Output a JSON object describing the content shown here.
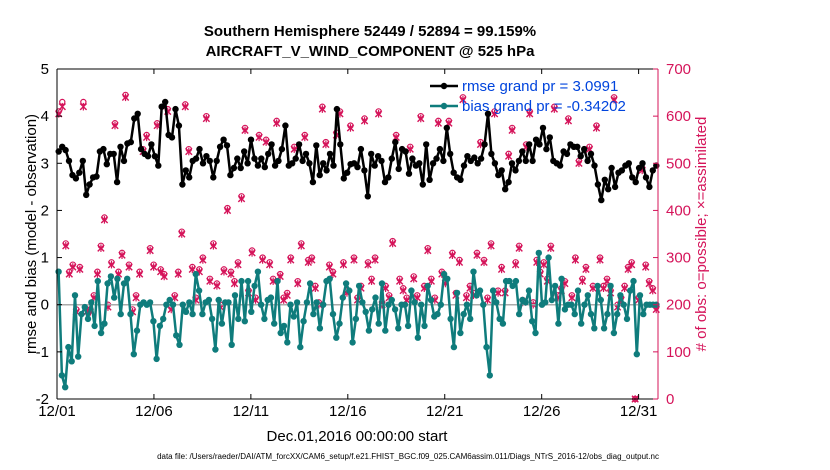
{
  "chart_data": {
    "type": "line",
    "title_line1": "Southern Hemisphere 52449 / 52894 = 99.159%",
    "title_line2": "AIRCRAFT_V_WIND_COMPONENT @ 525 hPa",
    "xlabel": "Dec.01,2016 00:00:00 start",
    "ylabel_left": "rmse and bias (model - observation)",
    "ylabel_right": "# of obs: o=possible; ×=assimilated",
    "footnote": "data file: /Users/raeder/DAI/ATM_forcXX/CAM6_setup/f.e21.FHIST_BGC.f09_025.CAM6assim.011/Diags_NTrS_2016-12/obs_diag_output.nc",
    "x_ticks": [
      1,
      6,
      11,
      16,
      21,
      26,
      31
    ],
    "x_tick_labels": [
      "12/01",
      "12/06",
      "12/11",
      "12/16",
      "12/21",
      "12/26",
      "12/31"
    ],
    "xlim": [
      1,
      32
    ],
    "ylim_left": [
      -2,
      5
    ],
    "y_ticks_left": [
      -2,
      -1,
      0,
      1,
      2,
      3,
      4,
      5
    ],
    "ylim_right": [
      0,
      700
    ],
    "y_ticks_right": [
      0,
      100,
      200,
      300,
      400,
      500,
      600,
      700
    ],
    "legend": [
      {
        "name": "rmse grand pr = 3.0991",
        "color": "#000000"
      },
      {
        "name": "bias grand pr = -0.34202",
        "color": "#0f7c7c"
      }
    ],
    "colors": {
      "rmse": "#000000",
      "bias": "#0f7c7c",
      "counts": "#d5145a",
      "legend_text": "#0044dd",
      "zero": "#aaaaaa"
    },
    "series": {
      "rmse": [
        3.25,
        3.35,
        3.28,
        3.05,
        2.75,
        2.68,
        2.8,
        3.05,
        2.33,
        2.55,
        2.7,
        2.72,
        3.25,
        3.3,
        2.98,
        3.2,
        3.2,
        2.6,
        3.35,
        3.05,
        3.42,
        3.45,
        3.95,
        4.05,
        3.3,
        3.2,
        3.15,
        3.4,
        3.15,
        2.95,
        4.2,
        4.3,
        3.6,
        3.55,
        4.15,
        3.8,
        2.55,
        2.85,
        2.7,
        3.05,
        3.1,
        3.3,
        3.0,
        3.15,
        3.05,
        2.7,
        3.05,
        3.35,
        3.5,
        3.38,
        2.75,
        2.9,
        3.1,
        2.9,
        3.25,
        3.0,
        3.5,
        3.1,
        2.95,
        3.1,
        2.92,
        3.2,
        3.4,
        2.95,
        3.05,
        3.3,
        3.8,
        2.95,
        3.0,
        3.1,
        3.4,
        3.05,
        3.2,
        3.0,
        2.6,
        3.38,
        2.75,
        3.0,
        2.85,
        3.2,
        2.95,
        4.15,
        3.4,
        2.68,
        2.8,
        2.98,
        3.0,
        2.92,
        3.3,
        2.85,
        2.3,
        3.2,
        2.95,
        3.15,
        3.05,
        2.6,
        2.7,
        3.1,
        3.45,
        2.88,
        3.3,
        3.25,
        2.78,
        3.1,
        2.95,
        3.0,
        2.55,
        3.4,
        2.65,
        3.0,
        3.1,
        3.3,
        3.05,
        3.75,
        3.2,
        2.8,
        2.7,
        2.65,
        2.95,
        3.15,
        3.05,
        3.12,
        3.0,
        3.1,
        3.4,
        4.05,
        3.2,
        3.0,
        2.75,
        2.85,
        2.45,
        2.6,
        3.0,
        2.85,
        3.05,
        3.25,
        3.05,
        3.4,
        3.05,
        3.5,
        3.4,
        3.75,
        3.3,
        3.55,
        3.05,
        3.0,
        2.95,
        3.25,
        3.2,
        3.4,
        3.35,
        3.35,
        3.15,
        3.3,
        3.05,
        3.2,
        2.95,
        2.55,
        2.22,
        2.65,
        2.45,
        2.9,
        2.5,
        2.8,
        2.85,
        2.95,
        3.0,
        2.7,
        2.6,
        2.9,
        3.0,
        2.7,
        2.5,
        2.85,
        2.95
      ],
      "bias": [
        0.7,
        -1.5,
        -1.75,
        -0.9,
        -1.2,
        0.2,
        -1.1,
        -0.2,
        -0.05,
        -0.3,
        0.05,
        -0.45,
        0.5,
        -0.6,
        -0.4,
        0.45,
        0.6,
        0.15,
        0.55,
        -0.2,
        0.45,
        0.55,
        -0.2,
        -1.05,
        -0.55,
        0.0,
        0.05,
        0.0,
        0.05,
        -0.35,
        -1.15,
        -0.45,
        -0.3,
        0.0,
        0.1,
        0.0,
        -0.65,
        -0.85,
        0.0,
        -0.15,
        0.05,
        -0.2,
        0.65,
        0.3,
        -0.2,
        0.05,
        0.1,
        -0.3,
        -0.95,
        0.1,
        -0.4,
        0.05,
        0.05,
        -0.85,
        0.2,
        -0.3,
        0.5,
        -0.35,
        0.5,
        -0.15,
        0.4,
        0.7,
        0.0,
        -0.3,
        0.1,
        0.15,
        -0.4,
        0.5,
        -0.6,
        -0.45,
        -0.8,
        0.0,
        -0.25,
        0.05,
        -0.9,
        -0.35,
        0.05,
        0.45,
        -0.2,
        0.05,
        -0.5,
        0.0,
        0.5,
        0.55,
        -0.2,
        -0.7,
        -0.4,
        0.15,
        0.45,
        0.3,
        -0.8,
        -0.3,
        0.4,
        0.05,
        -0.15,
        -0.55,
        -0.1,
        0.15,
        -0.4,
        0.45,
        -0.55,
        0.0,
        0.1,
        -0.1,
        -0.5,
        0.0,
        0.0,
        -0.45,
        0.3,
        0.05,
        -0.7,
        0.0,
        -0.45,
        0.4,
        0.1,
        -0.25,
        -0.2,
        0.0,
        0.65,
        0.55,
        -0.3,
        -0.9,
        0.25,
        -0.6,
        -0.2,
        0.0,
        -0.3,
        0.7,
        0.2,
        0.3,
        0.0,
        -0.9,
        -1.5,
        0.3,
        0.05,
        -0.3,
        -0.4,
        0.5,
        0.5,
        0.4,
        0.5,
        -0.2,
        0.1,
        0.05,
        0.3,
        -0.35,
        -0.6,
        1.1,
        0.0,
        0.05,
        1.0,
        0.1,
        0.4,
        -0.4,
        0.55,
        -0.1,
        0.0,
        0.0,
        -0.2,
        0.3,
        -0.4,
        0.0,
        0.2,
        -0.2,
        -0.5,
        0.4,
        0.1,
        -0.5,
        -0.2,
        0.4,
        -0.6,
        -0.2,
        0.2,
        0.0,
        -0.3,
        0.3,
        0.5,
        -1.05,
        0.2,
        -0.2,
        0.0,
        0.0,
        0.0,
        0.0
      ]
    },
    "counts": {
      "possible": [
        610,
        630,
        330,
        270,
        285,
        190,
        280,
        630,
        190,
        190,
        220,
        270,
        325,
        385,
        200,
        290,
        585,
        270,
        310,
        645,
        285,
        190,
        220,
        270,
        530,
        560,
        320,
        285,
        585,
        275,
        265,
        615,
        195,
        220,
        270,
        355,
        625,
        530,
        280,
        215,
        275,
        300,
        600,
        255,
        330,
        245,
        200,
        275,
        405,
        270,
        250,
        290,
        430,
        575,
        230,
        315,
        215,
        560,
        300,
        550,
        290,
        255,
        590,
        265,
        215,
        225,
        300,
        535,
        250,
        330,
        560,
        295,
        300,
        240,
        205,
        620,
        545,
        285,
        270,
        565,
        610,
        290,
        230,
        580,
        300,
        215,
        240,
        595,
        290,
        255,
        300,
        610,
        205,
        240,
        220,
        335,
        560,
        255,
        235,
        215,
        535,
        260,
        220,
        600,
        240,
        320,
        255,
        215,
        590,
        270,
        250,
        590,
        310,
        225,
        295,
        640,
        220,
        240,
        225,
        310,
        545,
        295,
        215,
        330,
        610,
        230,
        280,
        230,
        520,
        575,
        290,
        325,
        210,
        540,
        610,
        205,
        295,
        270,
        290,
        255,
        325,
        620,
        220,
        235,
        250,
        595,
        220,
        300,
        505,
        255,
        280,
        535,
        240,
        580,
        300,
        240,
        255,
        230,
        640,
        200,
        215,
        240,
        280,
        290,
        0,
        215,
        490,
        285,
        250,
        235,
        195
      ],
      "assimilated": [
        605,
        620,
        325,
        265,
        280,
        185,
        275,
        620,
        185,
        185,
        215,
        265,
        320,
        380,
        195,
        285,
        580,
        265,
        305,
        640,
        280,
        185,
        215,
        265,
        525,
        555,
        315,
        280,
        580,
        270,
        260,
        610,
        190,
        215,
        265,
        350,
        620,
        525,
        275,
        210,
        270,
        295,
        595,
        250,
        325,
        240,
        195,
        270,
        400,
        265,
        245,
        285,
        425,
        570,
        225,
        310,
        210,
        555,
        295,
        545,
        285,
        250,
        585,
        260,
        210,
        220,
        295,
        530,
        245,
        325,
        555,
        290,
        295,
        235,
        200,
        615,
        540,
        280,
        265,
        560,
        605,
        285,
        225,
        575,
        295,
        210,
        235,
        590,
        285,
        250,
        295,
        605,
        200,
        235,
        215,
        330,
        555,
        250,
        230,
        210,
        530,
        255,
        215,
        595,
        235,
        315,
        250,
        210,
        585,
        265,
        245,
        585,
        305,
        220,
        290,
        635,
        215,
        235,
        220,
        305,
        540,
        290,
        210,
        325,
        605,
        225,
        275,
        225,
        515,
        570,
        285,
        320,
        205,
        535,
        605,
        200,
        290,
        265,
        285,
        250,
        320,
        615,
        215,
        230,
        245,
        590,
        215,
        295,
        500,
        250,
        275,
        530,
        235,
        575,
        295,
        235,
        250,
        225,
        635,
        195,
        210,
        235,
        275,
        285,
        0,
        210,
        485,
        280,
        245,
        230,
        190
      ]
    }
  }
}
